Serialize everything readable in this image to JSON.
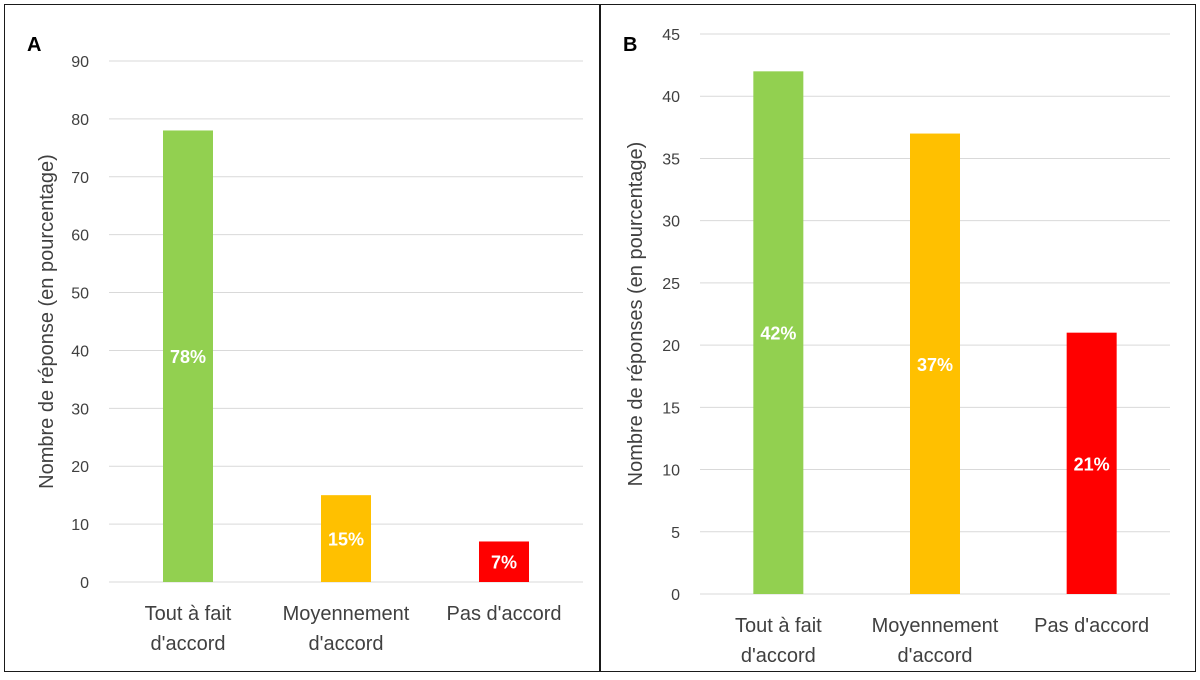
{
  "chart_data": [
    {
      "type": "bar",
      "panel_label": "A",
      "title": "",
      "xlabel": "",
      "ylabel": "Nombre de réponse (en pourcentage)",
      "ylim": [
        0,
        90
      ],
      "yticks": [
        0,
        10,
        20,
        30,
        40,
        50,
        60,
        70,
        80,
        90
      ],
      "grid": true,
      "categories": [
        [
          "Tout à fait",
          "d'accord"
        ],
        [
          "Moyennement",
          "d'accord"
        ],
        [
          "Pas d'accord"
        ]
      ],
      "values": [
        78,
        15,
        7
      ],
      "data_labels": [
        "78%",
        "15%",
        "7%"
      ],
      "colors": [
        "#92d050",
        "#ffc000",
        "#ff0000"
      ]
    },
    {
      "type": "bar",
      "panel_label": "B",
      "title": "",
      "xlabel": "",
      "ylabel": "Nombre de réponses (en pourcentage)",
      "ylim": [
        0,
        45
      ],
      "yticks": [
        0,
        5,
        10,
        15,
        20,
        25,
        30,
        35,
        40,
        45
      ],
      "grid": true,
      "categories": [
        [
          "Tout à fait",
          "d'accord"
        ],
        [
          "Moyennement",
          "d'accord"
        ],
        [
          "Pas d'accord"
        ]
      ],
      "values": [
        42,
        37,
        21
      ],
      "data_labels": [
        "42%",
        "37%",
        "21%"
      ],
      "colors": [
        "#92d050",
        "#ffc000",
        "#ff0000"
      ]
    }
  ]
}
